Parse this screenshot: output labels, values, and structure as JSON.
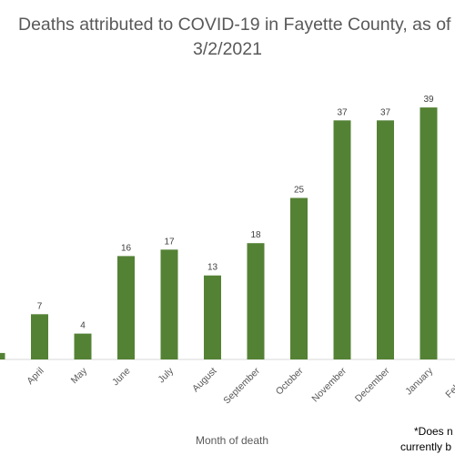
{
  "chart_data": {
    "type": "bar",
    "title_lines": [
      "Deaths attributed to COVID-19 in Fayette County, as of",
      "3/2/2021"
    ],
    "categories": [
      "",
      "April",
      "May",
      "June",
      "July",
      "August",
      "September",
      "October",
      "November",
      "December",
      "January",
      "February"
    ],
    "values": [
      1,
      7,
      4,
      16,
      17,
      13,
      18,
      25,
      37,
      37,
      39,
      null
    ],
    "data_labels": [
      "",
      "7",
      "4",
      "16",
      "17",
      "13",
      "18",
      "25",
      "37",
      "37",
      "39",
      ""
    ],
    "xlabel": "Month of death",
    "ylabel": "",
    "ylim": [
      0,
      40
    ],
    "grid": false,
    "legend": "none",
    "bar_color": "#548235",
    "footnote_lines": [
      "*Does n",
      "currently b"
    ]
  }
}
